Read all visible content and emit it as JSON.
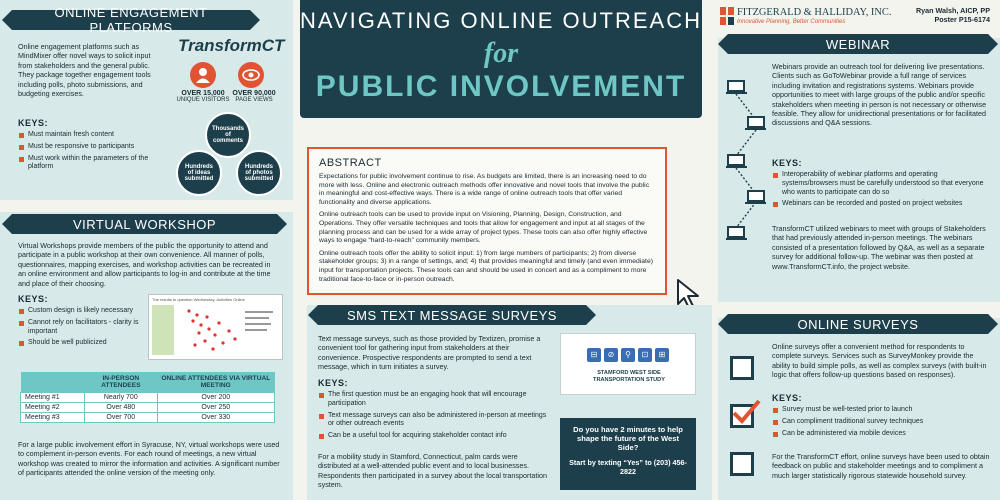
{
  "header": {
    "title_line1": "NAVIGATING ONLINE OUTREACH",
    "title_line2": "for",
    "title_line3": "PUBLIC INVOLVEMENT"
  },
  "brand": {
    "company": "FITZGERALD & HALLIDAY, INC.",
    "tagline": "Innovative Planning, Better Communities",
    "author": "Ryan Walsh, AICP, PP",
    "poster_id": "Poster P15-6174"
  },
  "engagement": {
    "heading": "ONLINE ENGAGEMENT PLATFORMS",
    "body": "Online engagement platforms such as MindMixer offer novel ways to solicit input from stakeholders and the general public. They package together engagement tools including polls, photo submissions, and budgeting exercises.",
    "keys_title": "KEYS:",
    "keys": [
      "Must maintain fresh content",
      "Must be responsive to participants",
      "Must work within the parameters of the platform"
    ],
    "logo_a": "Trans",
    "logo_b": "formCT",
    "stat1_value": "OVER 15,000",
    "stat1_label": "UNIQUE VISITORS",
    "stat2_value": "OVER 90,000",
    "stat2_label": "PAGE VIEWS",
    "circle1": "Thousands of comments",
    "circle2": "Hundreds of ideas submitted",
    "circle3": "Hundreds of photos submitted"
  },
  "workshop": {
    "heading": "VIRTUAL WORKSHOP",
    "body": "Virtual Workshops provide members of the public the opportunity to attend and participate in a public workshop at their own convenience. All manner of polls, questionnaires, mapping exercises, and workshop activities can be recreated in an online environment and allow participants to log-in and contribute at the time and place of their choosing.",
    "keys_title": "KEYS:",
    "keys": [
      "Custom design is likely necessary",
      "Cannot rely on facilitators - clarity is important",
      "Should be well publicized"
    ],
    "screenshot_title": "The results to question Wednesday, Activities Online",
    "table_head1": "IN-PERSON ATTENDEES",
    "table_head2": "ONLINE ATTENDEES VIA VIRTUAL MEETING",
    "rows": [
      {
        "name": "Meeting #1",
        "inperson": "Nearly 700",
        "online": "Over 200"
      },
      {
        "name": "Meeting #2",
        "inperson": "Over 480",
        "online": "Over 250"
      },
      {
        "name": "Meeting #3",
        "inperson": "Over 700",
        "online": "Over 330"
      }
    ],
    "footer": "For a large public involvement effort in Syracuse, NY, virtual workshops were used to complement in-person events. For each round of meetings, a new virtual workshop was created to mirror the information and activities. A significant number of participants attended the online version of the meeting only."
  },
  "abstract": {
    "heading": "ABSTRACT",
    "p1": "Expectations for public involvement continue to rise. As budgets are limited, there is an increasing need to do more with less. Online and electronic outreach methods offer innovative and novel tools that involve the public in meaningful and cost-effective ways. There is a wide range of online outreach tools that offer varied functionality and diverse applications.",
    "p2": "Online outreach tools can be used to provide input on Visioning, Planning, Design, Construction, and Operations. They offer versatile techniques and tools that allow for engagement and input at all stages of the planning process and can be used for a wide array of project types. These tools can also offer highly effective ways to engage “hard-to-reach” community members.",
    "p3": "Online outreach tools offer the ability to solicit input: 1) from large numbers of participants; 2) from diverse stakeholder groups; 3) in a range of settings, and; 4) that provides meaningful and timely (and even immediate) input for transportation projects. These tools can and should be used in concert and as a compliment to more traditional face-to-face or in-person outreach."
  },
  "sms": {
    "heading": "SMS TEXT MESSAGE SURVEYS",
    "body": "Text message surveys, such as those provided by Textizen, promise a convenient tool for gathering input from stakeholders at their convenience. Prospective respondents are prompted to send a text message, which in turn initiates a survey.",
    "keys_title": "KEYS:",
    "keys": [
      "The first question must be an engaging hook that will encourage participation",
      "Text message surveys can also be administered in-person at meetings or other outreach events",
      "Can be a useful tool for acquiring stakeholder contact info"
    ],
    "footer": "For a mobility study in Stamford, Connecticut, palm cards were distributed at a well-attended public event and to local businesses. Respondents then participated in a survey about the local transportation system.",
    "card_study": "STAMFORD WEST SIDE TRANSPORTATION STUDY",
    "card_q": "Do you have 2 minutes to help shape the future of the West Side?",
    "card_cta": "Start by texting “Yes” to (203) 456-2822"
  },
  "webinar": {
    "heading": "WEBINAR",
    "body": "Webinars provide an outreach tool for delivering live presentations. Clients such as GoToWebinar provide a full range of services including invitation and registrations systems. Webinars provide opportunities to meet with large groups of the public and/or specific stakeholders when meeting in person is not necessary or otherwise feasible. They allow for unidirectional presentations or for facilitated discussions and Q&A sessions.",
    "keys_title": "KEYS:",
    "keys": [
      "Interoperability of webinar platforms and operating systems/browsers must be carefully understood so that everyone who wants to participate can do so",
      "Webinars can be recorded and posted on project websites"
    ],
    "footer": "TransformCT utilized webinars to meet with groups of Stakeholders that had previously attended in-person meetings. The webinars consisted of a presentation followed by Q&A, as well as a separate survey for additional follow-up. The webinar was then posted at www.TransformCT.info, the project website."
  },
  "surveys": {
    "heading": "ONLINE SURVEYS",
    "body": "Online surveys offer a convenient method for respondents to complete surveys. Services such as SurveyMonkey provide the ability to build simple polls, as well as complex surveys (with built-in logic that offers follow-up questions based on responses).",
    "keys_title": "KEYS:",
    "keys": [
      "Survey must be well-tested prior to launch",
      "Can compliment traditional survey techniques",
      "Can be administered via mobile devices"
    ],
    "footer": "For the TransformCT effort, online surveys have been used to obtain feedback on public and stakeholder meetings and to compliment a much larger statistically rigorous statewide household survey."
  },
  "colors": {
    "navy": "#1d3f4b",
    "teal": "#6fc7c5",
    "accent": "#e05434"
  }
}
